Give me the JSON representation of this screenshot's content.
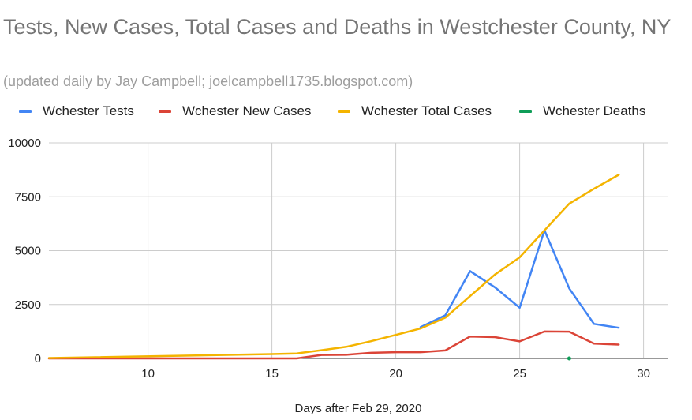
{
  "chart_data": {
    "type": "line",
    "title": "Tests, New Cases, Total Cases and Deaths in Westchester County, NY",
    "subtitle": "(updated daily by Jay Campbell; joelcampbell1735.blogspot.com)",
    "xlabel": "Days after Feb 29, 2020",
    "ylabel": "",
    "xlim": [
      6,
      31
    ],
    "ylim": [
      0,
      10000
    ],
    "xticks": [
      "10",
      "15",
      "20",
      "25",
      "30"
    ],
    "yticks": [
      "0",
      "2500",
      "5000",
      "7500",
      "10000"
    ],
    "grid": true,
    "legend_position": "top",
    "series": [
      {
        "name": "Wchester Tests",
        "color": "#4285f4",
        "points": [
          [
            21,
            1450
          ],
          [
            22,
            2000
          ],
          [
            23,
            4050
          ],
          [
            24,
            3300
          ],
          [
            25,
            2350
          ],
          [
            26,
            5950
          ],
          [
            27,
            3250
          ],
          [
            28,
            1600
          ],
          [
            29,
            1420
          ]
        ]
      },
      {
        "name": "Wchester New Cases",
        "color": "#db4437",
        "points": [
          [
            6,
            0
          ],
          [
            16,
            0
          ],
          [
            17,
            160
          ],
          [
            18,
            170
          ],
          [
            19,
            260
          ],
          [
            20,
            290
          ],
          [
            21,
            290
          ],
          [
            22,
            370
          ],
          [
            23,
            1020
          ],
          [
            24,
            990
          ],
          [
            25,
            790
          ],
          [
            26,
            1250
          ],
          [
            27,
            1240
          ],
          [
            28,
            690
          ],
          [
            29,
            640
          ]
        ]
      },
      {
        "name": "Wchester Total Cases",
        "color": "#f4b400",
        "points": [
          [
            6,
            20
          ],
          [
            15,
            200
          ],
          [
            16,
            230
          ],
          [
            17,
            380
          ],
          [
            18,
            540
          ],
          [
            19,
            800
          ],
          [
            20,
            1090
          ],
          [
            21,
            1390
          ],
          [
            22,
            1890
          ],
          [
            23,
            2890
          ],
          [
            24,
            3890
          ],
          [
            25,
            4690
          ],
          [
            26,
            5940
          ],
          [
            27,
            7180
          ],
          [
            28,
            7870
          ],
          [
            29,
            8520
          ]
        ]
      },
      {
        "name": "Wchester Deaths",
        "color": "#0f9d58",
        "points": [
          [
            27,
            0
          ]
        ]
      }
    ]
  }
}
